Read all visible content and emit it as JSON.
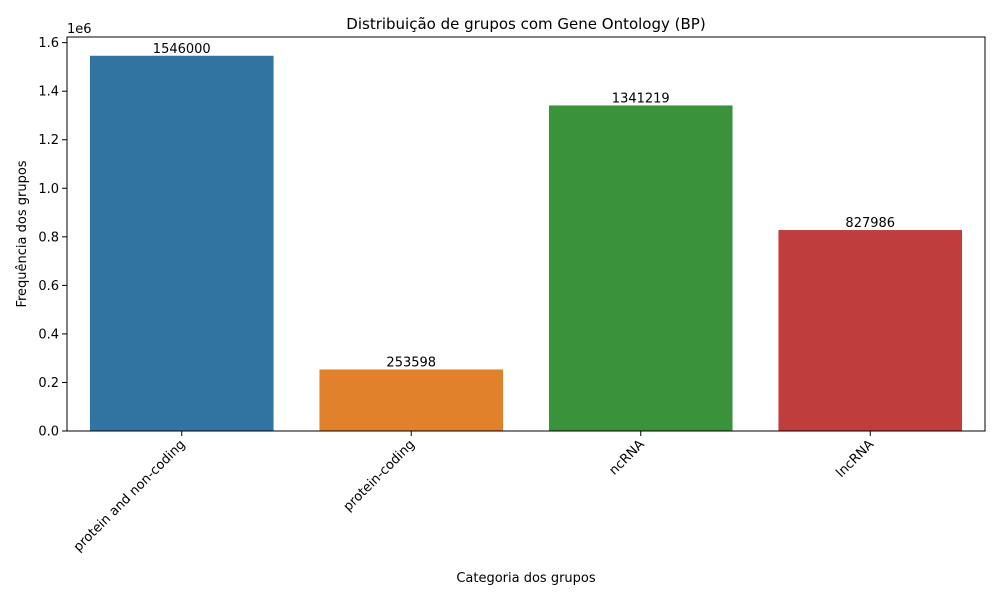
{
  "chart_data": {
    "type": "bar",
    "title": "Distribuição de grupos com Gene Ontology (BP)",
    "xlabel": "Categoria dos grupos",
    "ylabel": "Frequência dos grupos",
    "y_offset_label": "1e6",
    "y_scale": 1000000,
    "ylim": [
      0,
      1623300
    ],
    "yticks": [
      0,
      200000,
      400000,
      600000,
      800000,
      1000000,
      1200000,
      1400000,
      1600000
    ],
    "ytick_labels": [
      "0.0",
      "0.2",
      "0.4",
      "0.6",
      "0.8",
      "1.0",
      "1.2",
      "1.4",
      "1.6"
    ],
    "categories": [
      "protein and non-coding",
      "protein-coding",
      "ncRNA",
      "lncRNA"
    ],
    "values": [
      1546000,
      253598,
      1341219,
      827986
    ],
    "value_labels": [
      "1546000",
      "253598",
      "1341219",
      "827986"
    ],
    "colors": [
      "#3274a1",
      "#e1812c",
      "#3a923a",
      "#c03d3e"
    ],
    "grid": false,
    "legend": "none",
    "xtick_rotation": 45
  }
}
